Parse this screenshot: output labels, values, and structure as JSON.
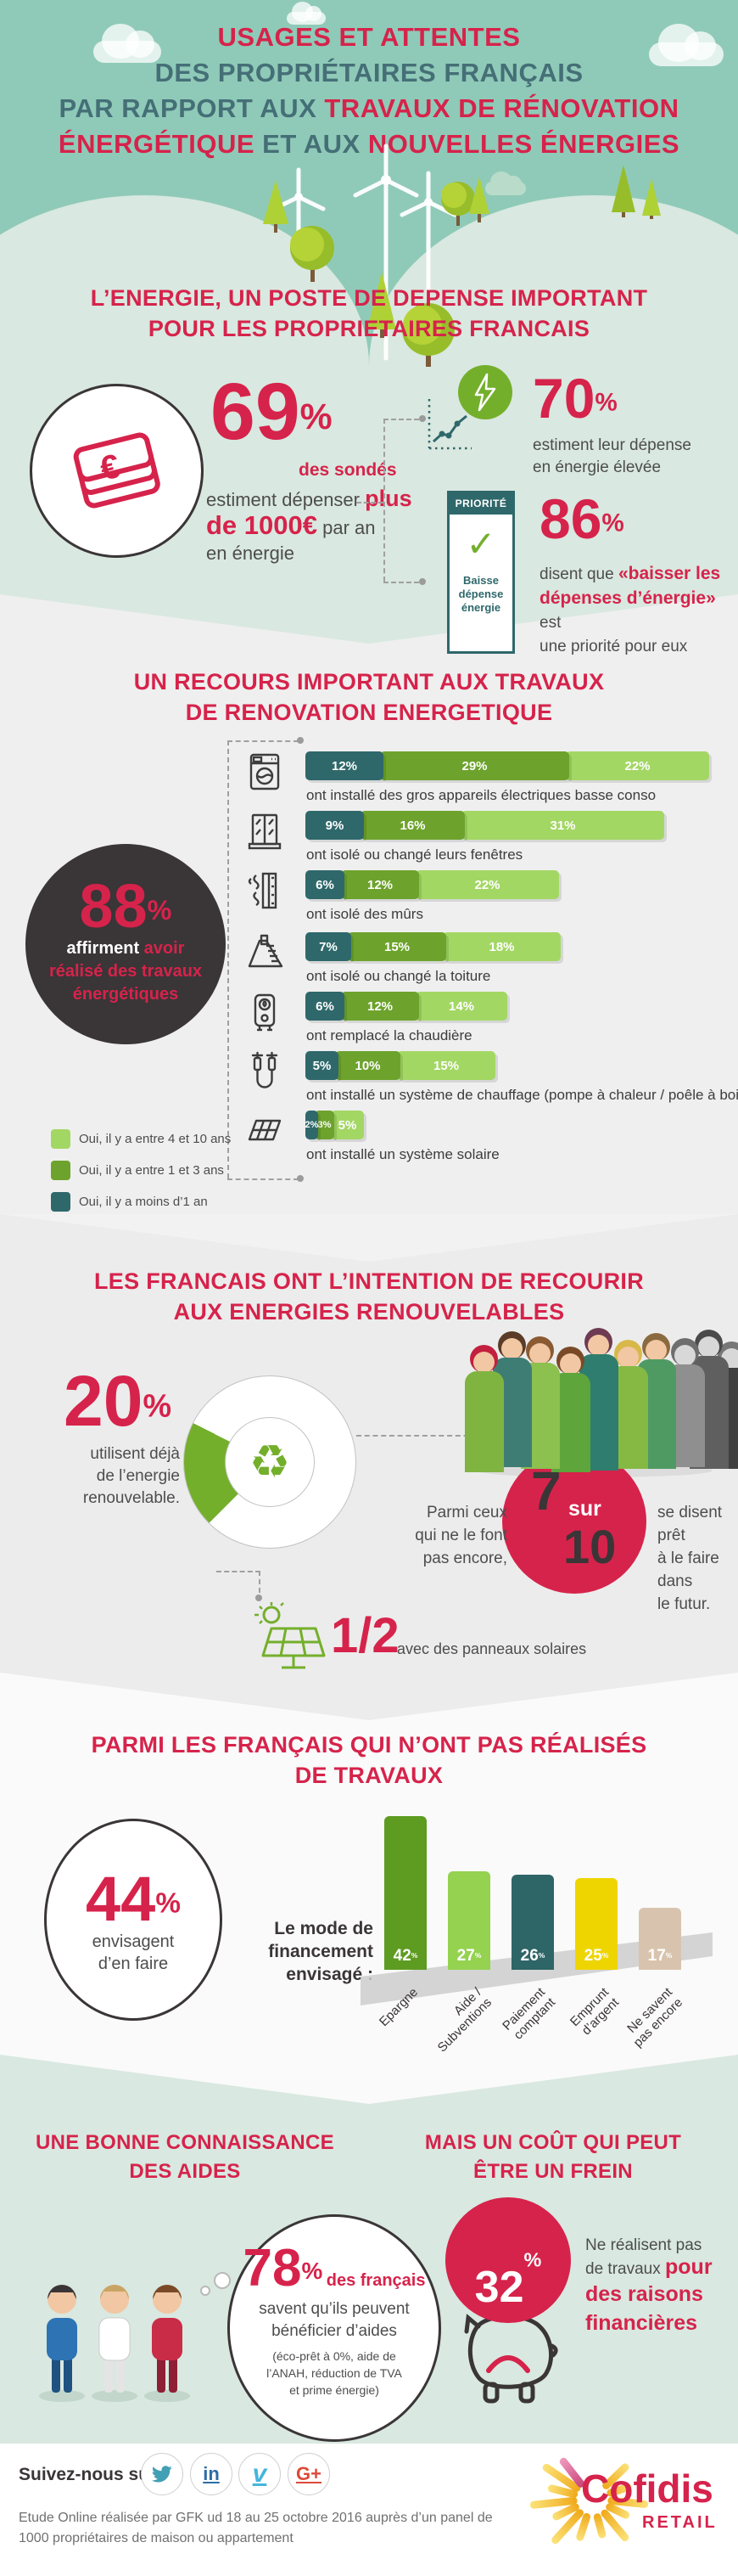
{
  "colors": {
    "crimson": "#d6234b",
    "teal_dark": "#2f686b",
    "header_bg": "#8fcab8",
    "sage": "#d9e8e0",
    "charcoal": "#3a3537",
    "green_donut": "#74af2c",
    "green_mid": "#6da32c",
    "green_light": "#a3d764"
  },
  "header": {
    "line1": "USAGES ET ATTENTES",
    "line2": "DES PROPRIÉTAIRES FRANÇAIS",
    "line3_a": "PAR RAPPORT AUX ",
    "line3_b": "TRAVAUX DE RÉNOVATION",
    "line4_a": "ÉNERGÉTIQUE",
    "line4_b": " ET AUX ",
    "line4_c": "NOUVELLES ÉNERGIES"
  },
  "section_energy": {
    "title1": "L’ENERGIE, UN POSTE DE DEPENSE IMPORTANT",
    "title2": "POUR LES PROPRIETAIRES FRANCAIS",
    "stat69": {
      "value": "69",
      "pct": "%",
      "sub": "des sondés",
      "t1a": "estiment dépenser ",
      "t1b": "plus",
      "t2a": "de 1000€",
      "t2b": " par an",
      "t3": "en énergie"
    },
    "stat70": {
      "value": "70",
      "pct": "%",
      "text1": "estiment leur dépense",
      "text2": "en énergie élevée"
    },
    "priority": {
      "header": "PRIORITÉ",
      "check": "✓",
      "label1": "Baisse",
      "label2": "dépense",
      "label3": "énergie"
    },
    "stat86": {
      "value": "86",
      "pct": "%",
      "t1a": "disent que ",
      "t1b": "«baisser les",
      "t2a": "dépenses d’énergie»",
      "t2b": " est",
      "t3": "une priorité pour eux"
    }
  },
  "section_reno": {
    "title1": "UN RECOURS IMPORTANT AUX TRAVAUX",
    "title2": "DE RENOVATION ENERGETIQUE",
    "stat88": {
      "value": "88",
      "pct": "%",
      "white": "affirment ",
      "red1": "avoir",
      "red2": "réalisé des travaux",
      "red3": "énergétiques"
    },
    "segment_colors": [
      "#2f686b",
      "#6da32c",
      "#a3d764"
    ],
    "rows": [
      {
        "icon": "appliance-icon",
        "values": [
          12,
          29,
          22
        ],
        "label": "ont installé des gros appareils électriques basse conso"
      },
      {
        "icon": "window-icon",
        "values": [
          9,
          16,
          31
        ],
        "label": "ont isolé ou changé leurs fenêtres"
      },
      {
        "icon": "wall-icon",
        "values": [
          6,
          12,
          22
        ],
        "label": "ont isolé des mûrs"
      },
      {
        "icon": "roof-icon",
        "values": [
          7,
          15,
          18
        ],
        "label": "ont isolé ou changé la toiture"
      },
      {
        "icon": "boiler-icon",
        "values": [
          6,
          12,
          14
        ],
        "label": "ont remplacé la chaudière"
      },
      {
        "icon": "heater-icon",
        "values": [
          5,
          10,
          15
        ],
        "label": "ont installé un système de chauffage (pompe à chaleur / poêle à bois)"
      },
      {
        "icon": "solar-icon",
        "values": [
          2,
          3,
          5
        ],
        "label": "ont installé un système solaire"
      }
    ],
    "legend": [
      {
        "color": "#a3d764",
        "label": "Oui, il y a entre 4 et 10 ans"
      },
      {
        "color": "#6da32c",
        "label": "Oui, il y a entre 1 et 3 ans"
      },
      {
        "color": "#2f686b",
        "label": "Oui, il y a moins d’1 an"
      }
    ]
  },
  "section_renew": {
    "title1": "LES FRANCAIS ONT L’INTENTION DE RECOURIR",
    "title2": "AUX ENERGIES RENOUVELABLES",
    "stat20": {
      "value": "20",
      "pct": "%",
      "sub1": "utilisent déjà",
      "sub2": "de l’energie",
      "sub3": "renouvelable."
    },
    "donut": {
      "value": 20,
      "total": 100
    },
    "crowd": {
      "total": 10,
      "highlighted": 7
    },
    "recycle_icon": "♻",
    "mid_left1": "Parmi ceux",
    "mid_left2": "qui ne le font",
    "mid_left3": "pas encore,",
    "ratio": {
      "a": "7",
      "sur": "sur",
      "b": "10"
    },
    "mid_right1": "se disent prêt",
    "mid_right2": "à le faire dans",
    "mid_right3": "le futur.",
    "solar": {
      "value": "1/2",
      "label": "avec des panneaux solaires"
    }
  },
  "section_finance": {
    "title1": "PARMI LES FRANÇAIS QUI N’ONT PAS RÉALISÉS",
    "title2": "DE TRAVAUX",
    "stat44": {
      "value": "44",
      "pct": "%",
      "sub1": "envisagent",
      "sub2": "d’en faire"
    },
    "chart_label1": "Le mode de",
    "chart_label2": "financement",
    "chart_label3": "envisagé :",
    "bars": [
      {
        "label": "Epargne",
        "label2": "",
        "value": 42,
        "color": "#5d9b21"
      },
      {
        "label": "Aide /",
        "label2": "Subventions",
        "value": 27,
        "color": "#94d24f"
      },
      {
        "label": "Paiement",
        "label2": "comptant",
        "value": 26,
        "color": "#2e6567"
      },
      {
        "label": "Emprunt",
        "label2": "d’argent",
        "value": 25,
        "color": "#eed500"
      },
      {
        "label": "Ne savent",
        "label2": "pas encore",
        "value": 17,
        "color": "#d8c4ae"
      }
    ]
  },
  "section_aid": {
    "left_title1": "UNE BONNE CONNAISSANCE",
    "left_title2": "DES AIDES",
    "stat78": {
      "value": "78",
      "pct": "%",
      "sub": "des français",
      "t1": "savent qu’ils peuvent",
      "t2": "bénéficier d’aides",
      "s1": "(éco-prêt à 0%, aide de",
      "s2": "l’ANAH, réduction de TVA",
      "s3": "et prime énergie)"
    },
    "right_title1": "MAIS UN COÛT QUI PEUT",
    "right_title2": "ÊTRE UN FREIN",
    "stat32": {
      "value": "32",
      "pct": "%",
      "t1": "Ne réalisent pas",
      "t2a": "de travaux ",
      "t2b": "pour",
      "t3": "des raisons",
      "t4": "financières"
    }
  },
  "footer": {
    "follow": "Suivez-nous sur :",
    "social": [
      {
        "name": "twitter",
        "color": "#42a0b5"
      },
      {
        "name": "linkedin",
        "color": "#2d6da5",
        "glyph": "in"
      },
      {
        "name": "vimeo",
        "color": "#45b5dc",
        "glyph": "v"
      },
      {
        "name": "google-plus",
        "color": "#dc4a38",
        "glyph": "G+"
      }
    ],
    "logo": {
      "name": "Cofidis",
      "sub": "RETAIL"
    },
    "study1": "Etude Online réalisée par GFK ud 18 au 25 octobre 2016 auprès d’un panel de",
    "study2": "1000 propriétaires de maison ou appartement"
  },
  "chart_data": [
    {
      "type": "bar",
      "orientation": "horizontal-stacked",
      "unit": "%",
      "title": "UN RECOURS IMPORTANT AUX TRAVAUX DE RENOVATION ENERGETIQUE",
      "categories": [
        "ont installé des gros appareils électriques basse conso",
        "ont isolé ou changé leurs fenêtres",
        "ont isolé des mûrs",
        "ont isolé ou changé la toiture",
        "ont remplacé la chaudière",
        "ont installé un système de chauffage (pompe à chaleur / poêle à bois)",
        "ont installé un système solaire"
      ],
      "series": [
        {
          "name": "Oui, il y a moins d’1 an",
          "color": "#2f686b",
          "values": [
            12,
            9,
            6,
            7,
            6,
            5,
            2
          ]
        },
        {
          "name": "Oui, il y a entre 1 et 3 ans",
          "color": "#6da32c",
          "values": [
            29,
            16,
            12,
            15,
            12,
            10,
            3
          ]
        },
        {
          "name": "Oui, il y a entre 4 et 10 ans",
          "color": "#a3d764",
          "values": [
            22,
            31,
            22,
            18,
            14,
            15,
            5
          ]
        }
      ],
      "legend_position": "bottom-left"
    },
    {
      "type": "pie",
      "title": "utilisent déjà de l’energie renouvelable.",
      "labels": [
        "utilisent déjà de l’energie renouvelable",
        "ne l’utilisent pas"
      ],
      "values": [
        20,
        80
      ],
      "unit": "%"
    },
    {
      "type": "bar",
      "title": "Le mode de financement envisagé :",
      "unit": "%",
      "categories": [
        "Epargne",
        "Aide / Subventions",
        "Paiement comptant",
        "Emprunt d’argent",
        "Ne savent pas encore"
      ],
      "values": [
        42,
        27,
        26,
        25,
        17
      ],
      "colors": [
        "#5d9b21",
        "#94d24f",
        "#2e6567",
        "#eed500",
        "#d8c4ae"
      ]
    }
  ]
}
